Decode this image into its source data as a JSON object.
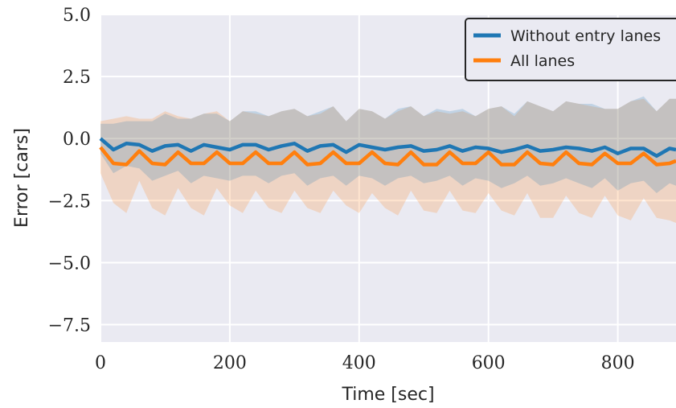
{
  "chart_data": {
    "type": "line",
    "xlabel": "Time [sec]",
    "ylabel": "Error [cars]",
    "xlim": [
      0,
      890
    ],
    "ylim": [
      -8.2,
      5.0
    ],
    "xticks": [
      0,
      200,
      400,
      600,
      800
    ],
    "xtick_labels": [
      "0",
      "200",
      "400",
      "600",
      "800"
    ],
    "yticks": [
      5.0,
      2.5,
      0.0,
      -2.5,
      -5.0,
      -7.5
    ],
    "ytick_labels": [
      "5.0",
      "2.5",
      "0.0",
      "−2.5",
      "−5.0",
      "−7.5"
    ],
    "grid": true,
    "legend_position": "top-right",
    "x": [
      0,
      20,
      40,
      60,
      80,
      100,
      120,
      140,
      160,
      180,
      200,
      220,
      240,
      260,
      280,
      300,
      320,
      340,
      360,
      380,
      400,
      420,
      440,
      460,
      480,
      500,
      520,
      540,
      560,
      580,
      600,
      620,
      640,
      660,
      680,
      700,
      720,
      740,
      760,
      780,
      800,
      820,
      840,
      860,
      880,
      890
    ],
    "series": [
      {
        "name": "Without entry lanes",
        "color": "#1f77b4",
        "values": [
          0.0,
          -0.45,
          -0.2,
          -0.25,
          -0.5,
          -0.3,
          -0.25,
          -0.5,
          -0.25,
          -0.35,
          -0.45,
          -0.25,
          -0.25,
          -0.45,
          -0.3,
          -0.2,
          -0.5,
          -0.3,
          -0.25,
          -0.55,
          -0.25,
          -0.35,
          -0.45,
          -0.35,
          -0.3,
          -0.5,
          -0.45,
          -0.3,
          -0.5,
          -0.35,
          -0.4,
          -0.55,
          -0.45,
          -0.3,
          -0.5,
          -0.45,
          -0.35,
          -0.4,
          -0.5,
          -0.35,
          -0.6,
          -0.4,
          -0.4,
          -0.7,
          -0.4,
          -0.45
        ],
        "upper": [
          0.6,
          0.6,
          0.7,
          0.7,
          0.7,
          1.0,
          0.8,
          0.8,
          1.0,
          1.0,
          0.7,
          1.1,
          1.1,
          0.9,
          1.1,
          1.2,
          0.9,
          1.1,
          1.3,
          0.7,
          1.2,
          1.1,
          0.8,
          1.2,
          1.3,
          0.9,
          1.2,
          1.1,
          1.2,
          0.9,
          1.2,
          1.3,
          1.0,
          1.5,
          1.3,
          1.1,
          1.5,
          1.4,
          1.4,
          1.2,
          1.2,
          1.5,
          1.7,
          1.1,
          1.6,
          1.6
        ],
        "lower": [
          -0.6,
          -1.4,
          -1.1,
          -1.2,
          -1.7,
          -1.5,
          -1.3,
          -1.8,
          -1.5,
          -1.6,
          -1.7,
          -1.5,
          -1.5,
          -1.8,
          -1.5,
          -1.4,
          -1.9,
          -1.6,
          -1.5,
          -1.9,
          -1.5,
          -1.6,
          -1.9,
          -1.6,
          -1.5,
          -1.8,
          -1.7,
          -1.5,
          -1.9,
          -1.6,
          -1.7,
          -2.0,
          -1.8,
          -1.5,
          -1.9,
          -1.8,
          -1.6,
          -1.8,
          -2.0,
          -1.6,
          -2.1,
          -1.8,
          -1.7,
          -2.2,
          -1.8,
          -1.9
        ]
      },
      {
        "name": "All lanes",
        "color": "#ff7f0e",
        "values": [
          -0.35,
          -1.0,
          -1.05,
          -0.5,
          -1.0,
          -1.05,
          -0.55,
          -1.0,
          -1.0,
          -0.55,
          -1.0,
          -1.0,
          -0.55,
          -1.0,
          -1.0,
          -0.55,
          -1.05,
          -1.0,
          -0.55,
          -1.0,
          -1.0,
          -0.55,
          -1.0,
          -1.05,
          -0.55,
          -1.05,
          -1.05,
          -0.55,
          -1.0,
          -1.0,
          -0.55,
          -1.05,
          -1.05,
          -0.55,
          -1.0,
          -1.05,
          -0.55,
          -1.0,
          -1.05,
          -0.6,
          -1.0,
          -1.0,
          -0.6,
          -1.05,
          -1.0,
          -0.9
        ],
        "upper": [
          0.7,
          0.8,
          0.9,
          0.8,
          0.8,
          1.1,
          0.9,
          0.8,
          1.0,
          1.1,
          0.7,
          1.1,
          1.0,
          0.9,
          1.1,
          1.2,
          0.9,
          1.0,
          1.3,
          0.7,
          1.2,
          1.1,
          0.8,
          1.1,
          1.3,
          0.9,
          1.1,
          1.0,
          1.1,
          0.9,
          1.2,
          1.3,
          0.9,
          1.5,
          1.3,
          1.1,
          1.5,
          1.4,
          1.3,
          1.2,
          1.2,
          1.5,
          1.6,
          1.1,
          1.6,
          1.6
        ],
        "lower": [
          -1.4,
          -2.6,
          -3.0,
          -1.7,
          -2.8,
          -3.1,
          -2.0,
          -2.8,
          -3.1,
          -2.0,
          -2.7,
          -3.0,
          -2.1,
          -2.8,
          -3.0,
          -2.1,
          -2.8,
          -3.0,
          -2.1,
          -2.7,
          -3.0,
          -2.2,
          -2.8,
          -3.1,
          -2.1,
          -2.9,
          -3.0,
          -2.1,
          -2.9,
          -3.0,
          -2.2,
          -2.9,
          -3.1,
          -2.2,
          -3.2,
          -3.2,
          -2.3,
          -3.0,
          -3.2,
          -2.3,
          -3.1,
          -3.3,
          -2.4,
          -3.2,
          -3.3,
          -3.4
        ]
      }
    ]
  }
}
